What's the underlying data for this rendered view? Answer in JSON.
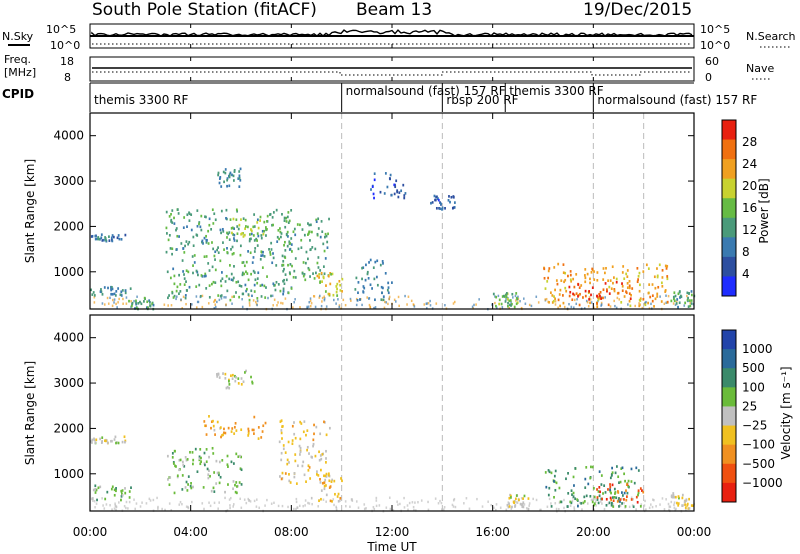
{
  "header": {
    "title": "South Pole Station (fitACF)",
    "beam": "Beam 13",
    "date": "19/Dec/2015"
  },
  "top_panels": {
    "nsky_label": "N.Sky",
    "nsearch_label": "N.Search",
    "noise_ticks": [
      "10^5",
      "10^0"
    ],
    "freq_label": "Freq.",
    "freq_unit": "[MHz]",
    "freq_ticks": [
      "18",
      "8"
    ],
    "nave_label": "Nave",
    "nave_ticks": [
      "60",
      "0"
    ],
    "cpid_label": "CPID"
  },
  "cpid_segments": [
    {
      "label": "themis 3300 RF",
      "start_hour": 0,
      "end_hour": 10
    },
    {
      "label": "normalsound (fast) 157 RF",
      "start_hour": 10,
      "end_hour": 14
    },
    {
      "label": "rbsp 200 RF",
      "start_hour": 14,
      "end_hour": 16.5
    },
    {
      "label": "themis 3300 RF",
      "start_hour": 16.5,
      "end_hour": 20
    },
    {
      "label": "normalsound (fast) 157 RF",
      "start_hour": 20,
      "end_hour": 24
    }
  ],
  "axes": {
    "ylabel": "Slant Range [km]",
    "yticks": [
      "1000",
      "2000",
      "3000",
      "4000"
    ],
    "xticks": [
      "00:00",
      "04:00",
      "08:00",
      "12:00",
      "16:00",
      "20:00",
      "00:00"
    ],
    "xlabel": "Time UT"
  },
  "colorbars": {
    "power": {
      "label": "Power [dB]",
      "ticks": [
        "4",
        "8",
        "12",
        "16",
        "20",
        "24",
        "28"
      ]
    },
    "velocity": {
      "label": "Velocity [m s⁻¹]",
      "ticks": [
        "1000",
        "500",
        "100",
        "25",
        "−25",
        "−100",
        "−500",
        "−1000"
      ]
    }
  },
  "colors": {
    "power_scale": [
      "#1f2dff",
      "#2d4fa0",
      "#3a7ab0",
      "#4a9a7a",
      "#66bb44",
      "#c8d230",
      "#f0a020",
      "#f07010",
      "#e82010"
    ],
    "velocity_scale": [
      "#2244aa",
      "#2a6a9a",
      "#3a8a6a",
      "#6abb3a",
      "#c0c0c0",
      "#f0c020",
      "#f09020",
      "#f05010",
      "#e82010"
    ]
  },
  "chart_data": [
    {
      "type": "heatmap",
      "title": "Power",
      "xlabel": "Time UT",
      "ylabel": "Slant Range [km]",
      "xlim": [
        0,
        24
      ],
      "ylim": [
        180,
        4500
      ],
      "zlabel": "Power [dB]",
      "zlim": [
        0,
        30
      ],
      "regions": [
        {
          "x": [
            0.0,
            1.4
          ],
          "y": [
            1700,
            1850
          ],
          "z": 8
        },
        {
          "x": [
            0.0,
            1.6
          ],
          "y": [
            500,
            700
          ],
          "z": 10
        },
        {
          "x": [
            1.4,
            2.5
          ],
          "y": [
            200,
            450
          ],
          "z": 12
        },
        {
          "x": [
            3.0,
            8.0
          ],
          "y": [
            400,
            2400
          ],
          "z": 12
        },
        {
          "x": [
            5.0,
            6.0
          ],
          "y": [
            2900,
            3300
          ],
          "z": 10
        },
        {
          "x": [
            5.5,
            7.0
          ],
          "y": [
            1800,
            2200
          ],
          "z": 16
        },
        {
          "x": [
            7.5,
            9.5
          ],
          "y": [
            800,
            2200
          ],
          "z": 12
        },
        {
          "x": [
            9.0,
            10.0
          ],
          "y": [
            500,
            1000
          ],
          "z": 18
        },
        {
          "x": [
            10.5,
            12.0
          ],
          "y": [
            400,
            1300
          ],
          "z": 10
        },
        {
          "x": [
            11.0,
            12.5
          ],
          "y": [
            2600,
            3200
          ],
          "z": 6
        },
        {
          "x": [
            13.5,
            14.5
          ],
          "y": [
            2400,
            2700
          ],
          "z": 6
        },
        {
          "x": [
            16.0,
            17.0
          ],
          "y": [
            250,
            600
          ],
          "z": 14
        },
        {
          "x": [
            18.0,
            23.0
          ],
          "y": [
            250,
            1200
          ],
          "z": 22
        },
        {
          "x": [
            19.0,
            21.5
          ],
          "y": [
            400,
            800
          ],
          "z": 28
        },
        {
          "x": [
            23.0,
            24.0
          ],
          "y": [
            250,
            600
          ],
          "z": 12
        }
      ]
    },
    {
      "type": "heatmap",
      "title": "Velocity",
      "xlabel": "Time UT",
      "ylabel": "Slant Range [km]",
      "xlim": [
        0,
        24
      ],
      "ylim": [
        180,
        4500
      ],
      "zlabel": "Velocity [m s⁻¹]",
      "zlim": [
        -1000,
        1000
      ],
      "regions": [
        {
          "x": [
            0.0,
            1.4
          ],
          "y": [
            1700,
            1850
          ],
          "z": 0
        },
        {
          "x": [
            0.0,
            1.6
          ],
          "y": [
            450,
            800
          ],
          "z": -200
        },
        {
          "x": [
            3.0,
            6.0
          ],
          "y": [
            600,
            1600
          ],
          "z": -200
        },
        {
          "x": [
            4.5,
            7.0
          ],
          "y": [
            1800,
            2300
          ],
          "z": 300
        },
        {
          "x": [
            5.0,
            6.5
          ],
          "y": [
            2900,
            3300
          ],
          "z": 0
        },
        {
          "x": [
            7.5,
            9.5
          ],
          "y": [
            800,
            2200
          ],
          "z": 150
        },
        {
          "x": [
            9.0,
            10.0
          ],
          "y": [
            400,
            1000
          ],
          "z": 200
        },
        {
          "x": [
            16.5,
            17.5
          ],
          "y": [
            250,
            600
          ],
          "z": 50
        },
        {
          "x": [
            18.0,
            22.0
          ],
          "y": [
            300,
            1200
          ],
          "z": -400
        },
        {
          "x": [
            20.0,
            22.0
          ],
          "y": [
            400,
            800
          ],
          "z": 600
        },
        {
          "x": [
            23.0,
            24.0
          ],
          "y": [
            250,
            600
          ],
          "z": 100
        }
      ]
    }
  ]
}
